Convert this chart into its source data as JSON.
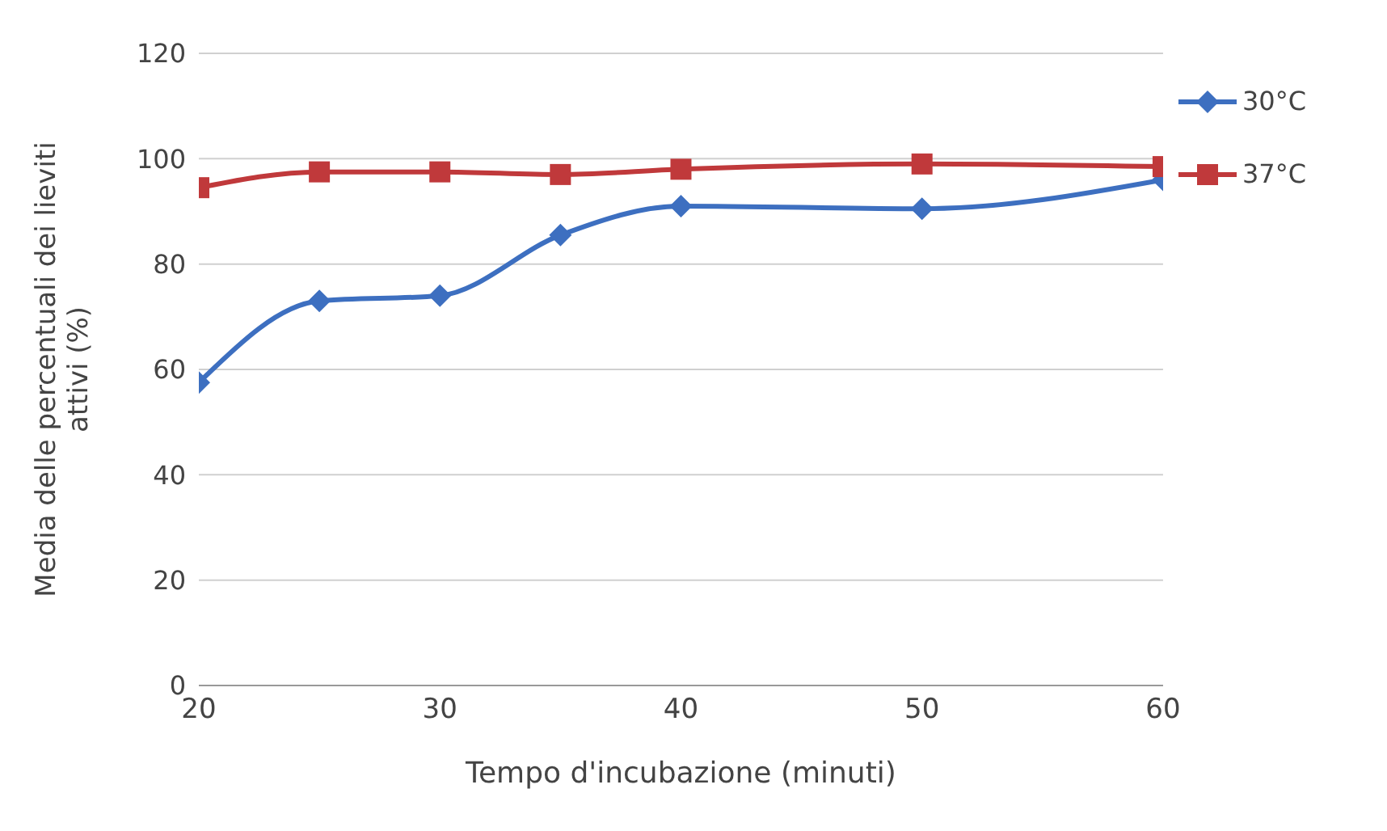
{
  "chart_data": {
    "type": "line",
    "xlabel": "Tempo d'incubazione (minuti)",
    "ylabel": "Media delle percentuali dei lieviti attivi (%)",
    "x": [
      20,
      25,
      30,
      35,
      40,
      50,
      60
    ],
    "series": [
      {
        "name": "30°C",
        "color": "#3d6fc0",
        "marker": "diamond",
        "values": [
          57.5,
          73,
          74,
          85.5,
          91,
          90.5,
          96
        ]
      },
      {
        "name": "37°C",
        "color": "#c0393b",
        "marker": "square",
        "values": [
          94.5,
          97.5,
          97.5,
          97,
          98,
          99,
          98.5
        ]
      }
    ],
    "xlim": [
      20,
      60
    ],
    "xticks": [
      20,
      30,
      40,
      50,
      60
    ],
    "ylim": [
      0,
      120
    ],
    "yticks": [
      0,
      20,
      40,
      60,
      80,
      100,
      120
    ],
    "grid": "y",
    "legend": "top right",
    "line_style": "solid"
  }
}
